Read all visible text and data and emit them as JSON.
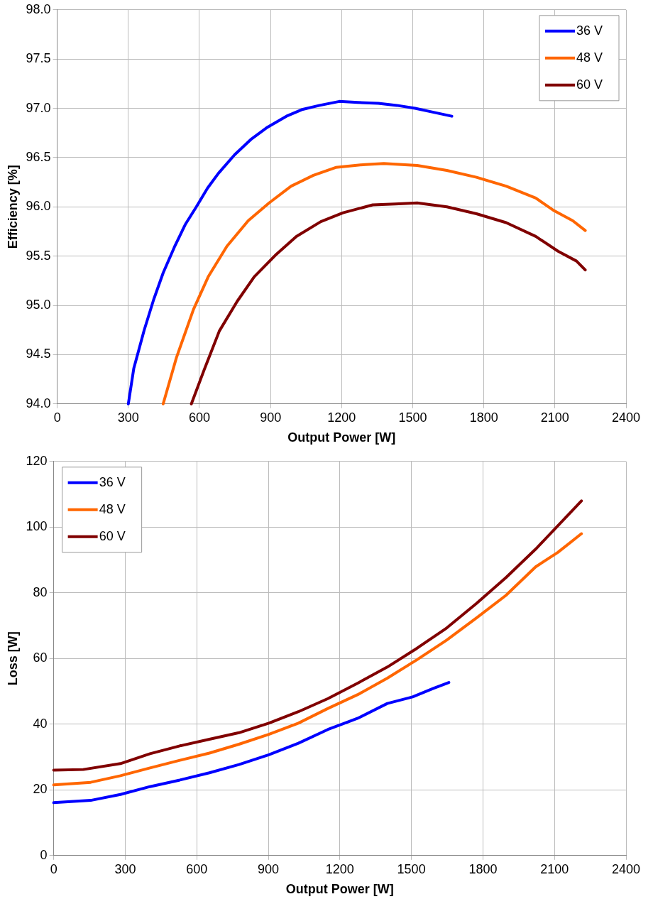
{
  "chart_data": [
    {
      "type": "line",
      "xlabel": "Output Power [W]",
      "ylabel": "Efficiency [%]",
      "xlim": [
        0,
        2400
      ],
      "xticks": [
        0,
        300,
        600,
        900,
        1200,
        1500,
        1800,
        2100,
        2400
      ],
      "ylim": [
        94,
        98
      ],
      "yticks": [
        {
          "value": 94,
          "label": "94.0"
        },
        {
          "value": 94.5,
          "label": "94.5"
        },
        {
          "value": 95,
          "label": "95.0"
        },
        {
          "value": 95.5,
          "label": "95.5"
        },
        {
          "value": 96,
          "label": "96.0"
        },
        {
          "value": 96.5,
          "label": "96.5"
        },
        {
          "value": 97,
          "label": "97.0"
        },
        {
          "value": 97.5,
          "label": "97.5"
        },
        {
          "value": 98,
          "label": "98.0"
        }
      ],
      "grid": true,
      "legend": "top right",
      "marker": "none",
      "line_style": "solid",
      "series": [
        {
          "name": "36 V",
          "color": "#0000ff",
          "x": [
            300,
            323,
            367,
            407,
            447,
            494,
            540,
            587,
            634,
            680,
            749,
            820,
            888,
            967,
            1036,
            1107,
            1190,
            1268,
            1355,
            1433,
            1510,
            1588,
            1665
          ],
          "values": [
            94.0,
            94.36,
            94.75,
            95.06,
            95.33,
            95.59,
            95.82,
            96.0,
            96.19,
            96.34,
            96.53,
            96.69,
            96.81,
            96.92,
            96.99,
            97.03,
            97.07,
            97.06,
            97.05,
            97.03,
            97.0,
            96.96,
            96.92
          ]
        },
        {
          "name": "48 V",
          "color": "#ff6600",
          "x": [
            447,
            503,
            575,
            637,
            716,
            806,
            894,
            987,
            1081,
            1175,
            1300,
            1378,
            1519,
            1644,
            1769,
            1894,
            2019,
            2097,
            2175,
            2228
          ],
          "values": [
            94.0,
            94.47,
            94.96,
            95.29,
            95.6,
            95.86,
            96.04,
            96.21,
            96.32,
            96.4,
            96.43,
            96.44,
            96.42,
            96.37,
            96.3,
            96.21,
            96.09,
            95.96,
            95.86,
            95.76
          ]
        },
        {
          "name": "60 V",
          "color": "#800000",
          "x": [
            566,
            619,
            684,
            759,
            831,
            925,
            1009,
            1112,
            1206,
            1331,
            1425,
            1519,
            1644,
            1769,
            1894,
            2019,
            2113,
            2191,
            2228
          ],
          "values": [
            94.0,
            94.34,
            94.74,
            95.04,
            95.29,
            95.52,
            95.7,
            95.85,
            95.94,
            96.02,
            96.03,
            96.04,
            96.0,
            95.93,
            95.84,
            95.7,
            95.55,
            95.45,
            95.36
          ]
        }
      ]
    },
    {
      "type": "line",
      "xlabel": "Output Power [W]",
      "ylabel": "Loss [W]",
      "xlim": [
        0,
        2400
      ],
      "xticks": [
        0,
        300,
        600,
        900,
        1200,
        1500,
        1800,
        2100,
        2400
      ],
      "ylim": [
        0,
        120
      ],
      "yticks": [
        0,
        20,
        40,
        60,
        80,
        100,
        120
      ],
      "grid": true,
      "legend": "top left",
      "marker": "none",
      "line_style": "solid",
      "series": [
        {
          "name": "36 V",
          "color": "#0000ff",
          "x": [
            0,
            155,
            280,
            404,
            529,
            653,
            777,
            902,
            1026,
            1150,
            1275,
            1399,
            1505,
            1592,
            1657
          ],
          "values": [
            16.1,
            16.8,
            18.6,
            21.0,
            23.0,
            25.2,
            27.7,
            30.7,
            34.2,
            38.4,
            41.8,
            46.3,
            48.3,
            50.9,
            52.7
          ]
        },
        {
          "name": "48 V",
          "color": "#ff6600",
          "x": [
            0,
            155,
            280,
            404,
            529,
            653,
            777,
            902,
            1026,
            1150,
            1275,
            1399,
            1523,
            1648,
            1772,
            1896,
            2021,
            2114,
            2213
          ],
          "values": [
            21.5,
            22.3,
            24.3,
            26.7,
            29.0,
            31.2,
            33.9,
            36.9,
            40.3,
            44.8,
            49.0,
            54.0,
            59.6,
            65.6,
            72.3,
            79.2,
            87.9,
            92.3,
            98
          ]
        },
        {
          "name": "60 V",
          "color": "#800000",
          "x": [
            0,
            124,
            280,
            404,
            529,
            653,
            777,
            902,
            1026,
            1150,
            1275,
            1399,
            1523,
            1648,
            1772,
            1896,
            2021,
            2213
          ],
          "values": [
            26.0,
            26.2,
            28.0,
            31,
            33.4,
            35.4,
            37.4,
            40.3,
            43.8,
            47.8,
            52.5,
            57.4,
            63.1,
            69.3,
            76.7,
            84.6,
            93.3,
            108
          ]
        }
      ]
    }
  ]
}
